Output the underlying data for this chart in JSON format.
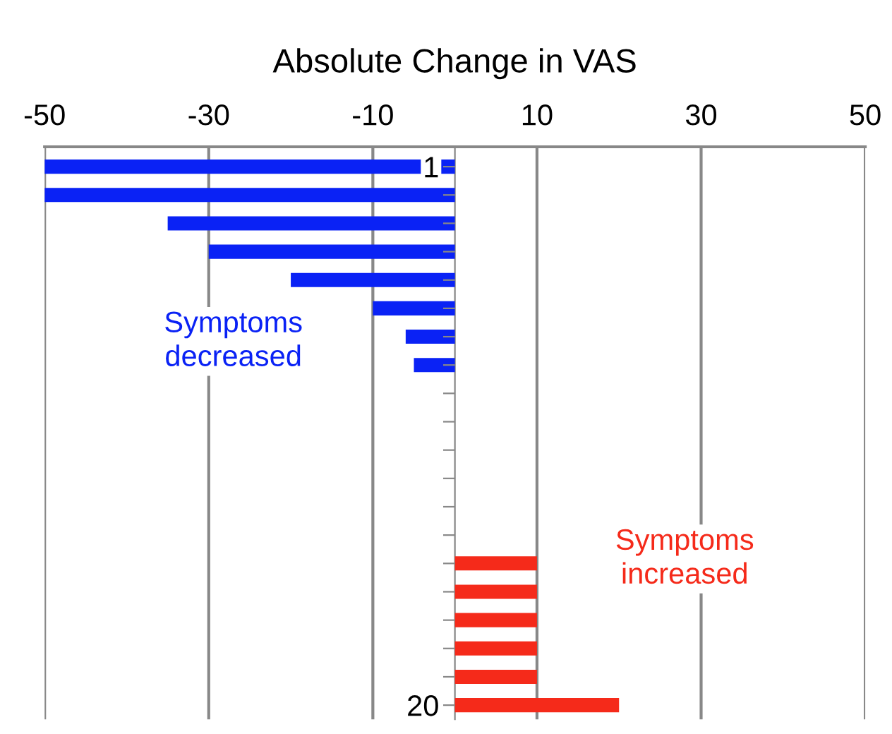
{
  "chart_data": {
    "type": "bar",
    "orientation": "horizontal",
    "title": "Absolute Change in VAS",
    "categories": [
      "1",
      null,
      null,
      null,
      null,
      null,
      null,
      null,
      null,
      null,
      null,
      null,
      null,
      null,
      null,
      null,
      null,
      null,
      null,
      "20"
    ],
    "values": [
      -50,
      -50,
      -35,
      -30,
      -20,
      -10,
      -6,
      -5,
      0,
      0,
      0,
      0,
      0,
      0,
      10,
      10,
      10,
      10,
      10,
      20
    ],
    "colors": [
      "#0a22f5",
      "#0a22f5",
      "#0a22f5",
      "#0a22f5",
      "#0a22f5",
      "#0a22f5",
      "#0a22f5",
      "#0a22f5",
      "#0a22f5",
      "#0a22f5",
      "#0a22f5",
      "#0a22f5",
      "#0a22f5",
      "#0a22f5",
      "#f52a1a",
      "#f52a1a",
      "#f52a1a",
      "#f52a1a",
      "#f52a1a",
      "#f52a1a"
    ],
    "xlim": [
      -50,
      50
    ],
    "xticks": [
      -50,
      -30,
      -10,
      10,
      30,
      50
    ],
    "grid": "x",
    "annotations": [
      "Symptoms\ndecreased",
      "Symptoms\nincreased"
    ]
  }
}
